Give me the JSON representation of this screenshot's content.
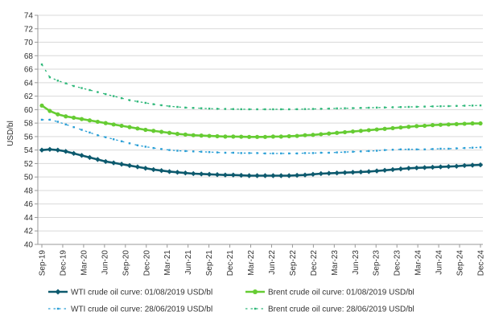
{
  "chart_data": {
    "type": "line",
    "title": "",
    "xlabel": "",
    "ylabel": "USD/bl",
    "ylim": [
      40,
      74
    ],
    "ytick_step": 2,
    "grid": "horizontal",
    "legend_position": "bottom",
    "x_tick_labels": [
      "Sep-19",
      "Dec-19",
      "Mar-20",
      "Jun-20",
      "Sep-20",
      "Dec-20",
      "Mar-21",
      "Jun-21",
      "Sep-21",
      "Dec-21",
      "Mar-22",
      "Jun-22",
      "Sep-22",
      "Dec-22",
      "Mar-23",
      "Jun-23",
      "Sep-23",
      "Dec-23",
      "Mar-24",
      "Jun-24",
      "Sep-24",
      "Dec-24"
    ],
    "series": [
      {
        "name": "WTI crude oil curve: 01/08/2019 USD/bl",
        "color": "#0d5a6e",
        "style": "solid-diamond",
        "values": [
          54.0,
          54.1,
          54.0,
          53.8,
          53.5,
          53.2,
          52.9,
          52.6,
          52.3,
          52.1,
          51.9,
          51.7,
          51.5,
          51.3,
          51.1,
          50.95,
          50.8,
          50.7,
          50.6,
          50.5,
          50.45,
          50.4,
          50.35,
          50.3,
          50.3,
          50.25,
          50.2,
          50.2,
          50.2,
          50.2,
          50.2,
          50.2,
          50.25,
          50.3,
          50.4,
          50.5,
          50.55,
          50.6,
          50.65,
          50.7,
          50.75,
          50.8,
          50.9,
          51.0,
          51.1,
          51.2,
          51.3,
          51.35,
          51.4,
          51.45,
          51.5,
          51.55,
          51.6,
          51.7,
          51.75,
          51.8
        ]
      },
      {
        "name": "Brent crude oil curve: 01/08/2019 USD/bl",
        "color": "#66cc33",
        "style": "solid-circle",
        "values": [
          60.6,
          59.8,
          59.3,
          59.0,
          58.8,
          58.6,
          58.4,
          58.2,
          58.0,
          57.8,
          57.6,
          57.4,
          57.2,
          57.0,
          56.85,
          56.7,
          56.55,
          56.4,
          56.3,
          56.2,
          56.15,
          56.1,
          56.05,
          56.0,
          56.0,
          55.98,
          55.95,
          55.95,
          55.95,
          56.0,
          56.0,
          56.05,
          56.1,
          56.2,
          56.25,
          56.35,
          56.45,
          56.55,
          56.65,
          56.75,
          56.85,
          56.95,
          57.05,
          57.15,
          57.25,
          57.35,
          57.45,
          57.55,
          57.6,
          57.7,
          57.75,
          57.8,
          57.85,
          57.9,
          57.95,
          57.95
        ]
      },
      {
        "name": "WTI crude oil curve: 28/06/2019 USD/bl",
        "color": "#2a9fd6",
        "style": "dashed",
        "values": [
          58.5,
          58.5,
          58.2,
          57.8,
          57.4,
          57.0,
          56.6,
          56.2,
          55.9,
          55.6,
          55.3,
          55.0,
          54.7,
          54.5,
          54.3,
          54.15,
          54.0,
          53.9,
          53.85,
          53.8,
          53.75,
          53.7,
          53.65,
          53.6,
          53.6,
          53.55,
          53.55,
          53.55,
          53.5,
          53.5,
          53.5,
          53.5,
          53.5,
          53.55,
          53.55,
          53.6,
          53.6,
          53.65,
          53.7,
          53.75,
          53.8,
          53.85,
          53.9,
          54.0,
          54.05,
          54.1,
          54.1,
          54.1,
          54.1,
          54.15,
          54.2,
          54.2,
          54.25,
          54.3,
          54.35,
          54.4
        ]
      },
      {
        "name": "Brent crude oil curve: 28/06/2019 USD/bl",
        "color": "#2fb87a",
        "style": "dashed",
        "values": [
          66.7,
          64.8,
          64.3,
          63.9,
          63.5,
          63.2,
          62.9,
          62.6,
          62.3,
          62.0,
          61.7,
          61.4,
          61.2,
          61.0,
          60.8,
          60.65,
          60.5,
          60.4,
          60.3,
          60.25,
          60.2,
          60.15,
          60.12,
          60.1,
          60.08,
          60.06,
          60.05,
          60.05,
          60.05,
          60.05,
          60.05,
          60.05,
          60.06,
          60.08,
          60.1,
          60.12,
          60.15,
          60.18,
          60.2,
          60.22,
          60.25,
          60.28,
          60.3,
          60.32,
          60.35,
          60.38,
          60.4,
          60.42,
          60.45,
          60.48,
          60.5,
          60.52,
          60.55,
          60.58,
          60.6,
          60.62
        ]
      }
    ]
  }
}
